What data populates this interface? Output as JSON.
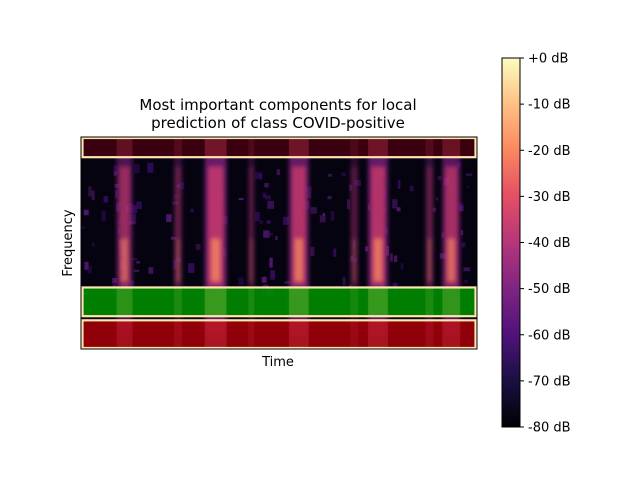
{
  "chart_data": {
    "type": "heatmap",
    "title_lines": [
      "Most important components for local",
      "prediction of class COVID-positive"
    ],
    "xlabel": "Time",
    "ylabel": "Frequency",
    "colormap": "magma",
    "colorbar": {
      "unit": "dB",
      "range": [
        -80,
        0
      ],
      "ticks": [
        0,
        -10,
        -20,
        -30,
        -40,
        -50,
        -60,
        -70,
        -80
      ],
      "tick_labels": [
        "+0 dB",
        "-10 dB",
        "-20 dB",
        "-30 dB",
        "-40 dB",
        "-50 dB",
        "-60 dB",
        "-70 dB",
        "-80 dB"
      ]
    },
    "highlighted_components": [
      {
        "band": "top",
        "fill": "#400010",
        "outline": "#ffe6b0"
      },
      {
        "band": "lower-middle",
        "fill": "#008c00",
        "outline": "#ffe6b0"
      },
      {
        "band": "bottom",
        "fill": "#a00008",
        "outline": "#ffe6b0"
      }
    ]
  }
}
